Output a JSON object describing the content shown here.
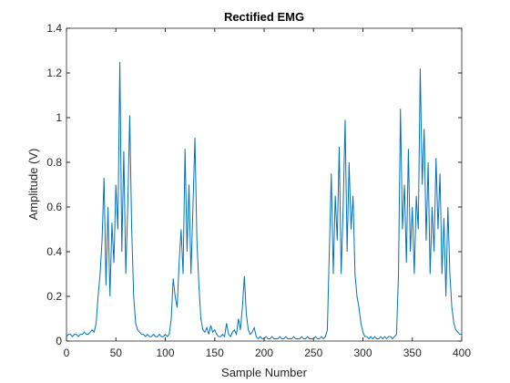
{
  "chart_data": {
    "type": "line",
    "title": "Rectified EMG",
    "xlabel": "Sample Number",
    "ylabel": "Amplitude (V)",
    "color": "#0072bd",
    "x": [
      0,
      2,
      4,
      6,
      8,
      10,
      12,
      14,
      16,
      18,
      20,
      22,
      24,
      26,
      28,
      30,
      32,
      34,
      36,
      38,
      40,
      42,
      44,
      46,
      48,
      50,
      52,
      54,
      56,
      58,
      60,
      62,
      64,
      66,
      68,
      70,
      72,
      74,
      76,
      78,
      80,
      82,
      84,
      86,
      88,
      90,
      92,
      94,
      96,
      98,
      100,
      102,
      104,
      106,
      108,
      110,
      112,
      114,
      116,
      118,
      120,
      122,
      124,
      126,
      128,
      130,
      132,
      134,
      136,
      138,
      140,
      142,
      144,
      146,
      148,
      150,
      152,
      154,
      156,
      158,
      160,
      162,
      164,
      166,
      168,
      170,
      172,
      174,
      176,
      178,
      180,
      182,
      184,
      186,
      188,
      190,
      192,
      194,
      196,
      198,
      200,
      202,
      204,
      206,
      208,
      210,
      212,
      214,
      216,
      218,
      220,
      222,
      224,
      226,
      228,
      230,
      232,
      234,
      236,
      238,
      240,
      242,
      244,
      246,
      248,
      250,
      252,
      254,
      256,
      258,
      260,
      262,
      264,
      266,
      268,
      270,
      272,
      274,
      276,
      278,
      280,
      282,
      284,
      286,
      288,
      290,
      292,
      294,
      296,
      298,
      300,
      302,
      304,
      306,
      308,
      310,
      312,
      314,
      316,
      318,
      320,
      322,
      324,
      326,
      328,
      330,
      332,
      334,
      336,
      338,
      340,
      342,
      344,
      346,
      348,
      350,
      352,
      354,
      356,
      358,
      360,
      362,
      364,
      366,
      368,
      370,
      372,
      374,
      376,
      378,
      380,
      382,
      384,
      386,
      388,
      390,
      392,
      394,
      396,
      398,
      400
    ],
    "values": [
      0.02,
      0.03,
      0.03,
      0.02,
      0.03,
      0.03,
      0.02,
      0.03,
      0.03,
      0.04,
      0.03,
      0.03,
      0.04,
      0.05,
      0.04,
      0.08,
      0.2,
      0.3,
      0.45,
      0.73,
      0.25,
      0.6,
      0.2,
      0.53,
      0.35,
      0.7,
      0.5,
      1.25,
      0.4,
      0.85,
      0.3,
      0.6,
      1.01,
      0.5,
      0.2,
      0.08,
      0.05,
      0.04,
      0.03,
      0.03,
      0.02,
      0.03,
      0.02,
      0.02,
      0.03,
      0.02,
      0.02,
      0.03,
      0.02,
      0.02,
      0.03,
      0.02,
      0.03,
      0.1,
      0.28,
      0.2,
      0.15,
      0.35,
      0.5,
      0.3,
      0.86,
      0.4,
      0.7,
      0.3,
      0.6,
      0.91,
      0.45,
      0.25,
      0.1,
      0.05,
      0.04,
      0.06,
      0.03,
      0.07,
      0.04,
      0.05,
      0.03,
      0.02,
      0.02,
      0.03,
      0.02,
      0.08,
      0.03,
      0.02,
      0.04,
      0.05,
      0.03,
      0.1,
      0.05,
      0.15,
      0.29,
      0.12,
      0.05,
      0.03,
      0.04,
      0.06,
      0.02,
      0.01,
      0.02,
      0.01,
      0.01,
      0.02,
      0.01,
      0.01,
      0.02,
      0.01,
      0.01,
      0.01,
      0.02,
      0.01,
      0.01,
      0.02,
      0.01,
      0.01,
      0.01,
      0.02,
      0.01,
      0.01,
      0.01,
      0.02,
      0.01,
      0.01,
      0.02,
      0.01,
      0.01,
      0.01,
      0.02,
      0.01,
      0.01,
      0.02,
      0.01,
      0.02,
      0.05,
      0.4,
      0.75,
      0.3,
      0.65,
      0.45,
      0.87,
      0.3,
      0.6,
      0.99,
      0.4,
      0.8,
      0.5,
      0.65,
      0.3,
      0.2,
      0.15,
      0.08,
      0.04,
      0.02,
      0.02,
      0.01,
      0.02,
      0.01,
      0.02,
      0.01,
      0.01,
      0.02,
      0.01,
      0.02,
      0.01,
      0.02,
      0.02,
      0.01,
      0.02,
      0.03,
      0.3,
      1.04,
      0.5,
      0.7,
      0.35,
      0.86,
      0.4,
      0.6,
      0.3,
      0.65,
      0.5,
      1.22,
      0.7,
      0.95,
      0.45,
      0.8,
      0.3,
      0.6,
      0.4,
      0.82,
      0.5,
      0.75,
      0.3,
      0.55,
      0.2,
      0.6,
      0.3,
      0.15,
      0.08,
      0.05,
      0.04,
      0.03,
      0.03
    ],
    "xlim": [
      0,
      400
    ],
    "xticks": [
      0,
      50,
      100,
      150,
      200,
      250,
      300,
      350,
      400
    ],
    "ylim": [
      0,
      1.4
    ],
    "yticks": [
      0,
      0.2,
      0.4,
      0.6,
      0.8,
      1,
      1.2,
      1.4
    ],
    "grid": false
  }
}
